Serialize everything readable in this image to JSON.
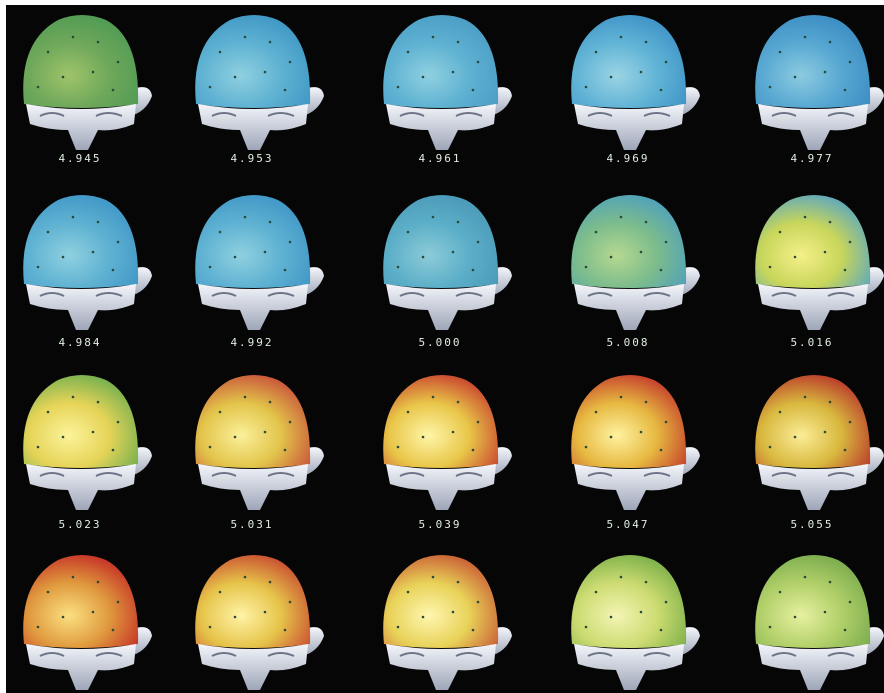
{
  "labels": [
    [
      "4.945",
      "4.953",
      "4.961",
      "4.969",
      "4.977"
    ],
    [
      "4.984",
      "4.992",
      "5.000",
      "5.008",
      "5.016"
    ],
    [
      "5.023",
      "5.031",
      "5.039",
      "5.047",
      "5.055"
    ]
  ]
}
